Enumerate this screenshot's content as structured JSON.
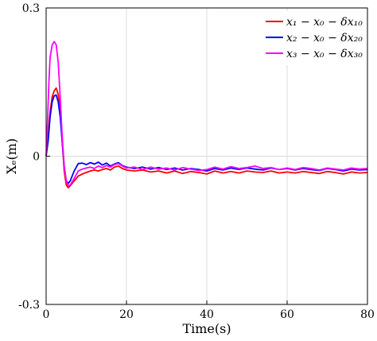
{
  "chart_data": {
    "type": "line",
    "xlabel": "Time(s)",
    "ylabel": "Xₑ(m)",
    "xlim": [
      0,
      80
    ],
    "ylim": [
      -0.3,
      0.3
    ],
    "xticks": [
      "0",
      "20",
      "40",
      "60",
      "80"
    ],
    "yticks": [
      "-0.3",
      "0",
      "0.3"
    ],
    "grid": true,
    "legend_position": "top-right",
    "series": [
      {
        "name": "x₁ − x₀ − δx₁₀",
        "color": "#ff0000",
        "points": [
          [
            0,
            0.0
          ],
          [
            0.5,
            0.04
          ],
          [
            1,
            0.09
          ],
          [
            1.5,
            0.12
          ],
          [
            2,
            0.132
          ],
          [
            2.5,
            0.138
          ],
          [
            3,
            0.125
          ],
          [
            3.5,
            0.09
          ],
          [
            4,
            0.03
          ],
          [
            4.5,
            -0.03
          ],
          [
            5,
            -0.058
          ],
          [
            5.5,
            -0.064
          ],
          [
            6,
            -0.06
          ],
          [
            7,
            -0.05
          ],
          [
            8,
            -0.04
          ],
          [
            9,
            -0.036
          ],
          [
            10,
            -0.033
          ],
          [
            11,
            -0.03
          ],
          [
            12,
            -0.028
          ],
          [
            13,
            -0.03
          ],
          [
            14,
            -0.027
          ],
          [
            15,
            -0.025
          ],
          [
            16,
            -0.028
          ],
          [
            17,
            -0.022
          ],
          [
            18,
            -0.02
          ],
          [
            19,
            -0.025
          ],
          [
            20,
            -0.028
          ],
          [
            22,
            -0.03
          ],
          [
            24,
            -0.028
          ],
          [
            26,
            -0.032
          ],
          [
            28,
            -0.03
          ],
          [
            30,
            -0.034
          ],
          [
            32,
            -0.03
          ],
          [
            34,
            -0.035
          ],
          [
            36,
            -0.031
          ],
          [
            38,
            -0.033
          ],
          [
            40,
            -0.036
          ],
          [
            42,
            -0.03
          ],
          [
            44,
            -0.034
          ],
          [
            46,
            -0.031
          ],
          [
            48,
            -0.034
          ],
          [
            50,
            -0.03
          ],
          [
            52,
            -0.032
          ],
          [
            54,
            -0.033
          ],
          [
            56,
            -0.03
          ],
          [
            58,
            -0.034
          ],
          [
            60,
            -0.032
          ],
          [
            62,
            -0.034
          ],
          [
            64,
            -0.031
          ],
          [
            66,
            -0.033
          ],
          [
            68,
            -0.035
          ],
          [
            70,
            -0.031
          ],
          [
            72,
            -0.033
          ],
          [
            74,
            -0.036
          ],
          [
            76,
            -0.032
          ],
          [
            78,
            -0.034
          ],
          [
            80,
            -0.033
          ]
        ]
      },
      {
        "name": "x₂ − x₀ − δx₂₀",
        "color": "#0000ff",
        "points": [
          [
            0,
            0.0
          ],
          [
            0.5,
            0.03
          ],
          [
            1,
            0.08
          ],
          [
            1.5,
            0.11
          ],
          [
            2,
            0.122
          ],
          [
            2.5,
            0.124
          ],
          [
            3,
            0.11
          ],
          [
            3.5,
            0.08
          ],
          [
            4,
            0.03
          ],
          [
            4.5,
            -0.02
          ],
          [
            5,
            -0.05
          ],
          [
            5.5,
            -0.055
          ],
          [
            6,
            -0.05
          ],
          [
            7,
            -0.03
          ],
          [
            8,
            -0.015
          ],
          [
            9,
            -0.014
          ],
          [
            10,
            -0.017
          ],
          [
            11,
            -0.013
          ],
          [
            12,
            -0.016
          ],
          [
            13,
            -0.012
          ],
          [
            14,
            -0.018
          ],
          [
            15,
            -0.014
          ],
          [
            16,
            -0.02
          ],
          [
            17,
            -0.016
          ],
          [
            18,
            -0.013
          ],
          [
            19,
            -0.019
          ],
          [
            20,
            -0.022
          ],
          [
            22,
            -0.025
          ],
          [
            24,
            -0.022
          ],
          [
            26,
            -0.026
          ],
          [
            28,
            -0.023
          ],
          [
            30,
            -0.027
          ],
          [
            32,
            -0.024
          ],
          [
            34,
            -0.028
          ],
          [
            36,
            -0.025
          ],
          [
            38,
            -0.027
          ],
          [
            40,
            -0.03
          ],
          [
            42,
            -0.025
          ],
          [
            44,
            -0.028
          ],
          [
            46,
            -0.024
          ],
          [
            48,
            -0.027
          ],
          [
            50,
            -0.024
          ],
          [
            52,
            -0.026
          ],
          [
            54,
            -0.028
          ],
          [
            56,
            -0.024
          ],
          [
            58,
            -0.027
          ],
          [
            60,
            -0.025
          ],
          [
            62,
            -0.028
          ],
          [
            64,
            -0.025
          ],
          [
            66,
            -0.027
          ],
          [
            68,
            -0.029
          ],
          [
            70,
            -0.025
          ],
          [
            72,
            -0.027
          ],
          [
            74,
            -0.03
          ],
          [
            76,
            -0.026
          ],
          [
            78,
            -0.028
          ],
          [
            80,
            -0.027
          ]
        ]
      },
      {
        "name": "x₃ − x₀ − δx₃₀",
        "color": "#ff00ff",
        "points": [
          [
            0,
            0.0
          ],
          [
            0.3,
            0.06
          ],
          [
            0.7,
            0.15
          ],
          [
            1,
            0.2
          ],
          [
            1.5,
            0.225
          ],
          [
            2,
            0.232
          ],
          [
            2.5,
            0.226
          ],
          [
            3,
            0.19
          ],
          [
            3.5,
            0.12
          ],
          [
            4,
            0.04
          ],
          [
            4.5,
            -0.02
          ],
          [
            5,
            -0.05
          ],
          [
            5.5,
            -0.06
          ],
          [
            6,
            -0.058
          ],
          [
            7,
            -0.045
          ],
          [
            8,
            -0.03
          ],
          [
            9,
            -0.026
          ],
          [
            10,
            -0.024
          ],
          [
            11,
            -0.022
          ],
          [
            12,
            -0.025
          ],
          [
            13,
            -0.02
          ],
          [
            14,
            -0.023
          ],
          [
            15,
            -0.019
          ],
          [
            16,
            -0.022
          ],
          [
            17,
            -0.017
          ],
          [
            18,
            -0.015
          ],
          [
            19,
            -0.02
          ],
          [
            20,
            -0.024
          ],
          [
            22,
            -0.022
          ],
          [
            24,
            -0.027
          ],
          [
            26,
            -0.022
          ],
          [
            28,
            -0.026
          ],
          [
            30,
            -0.024
          ],
          [
            32,
            -0.028
          ],
          [
            34,
            -0.023
          ],
          [
            36,
            -0.026
          ],
          [
            38,
            -0.029
          ],
          [
            40,
            -0.027
          ],
          [
            42,
            -0.022
          ],
          [
            44,
            -0.026
          ],
          [
            46,
            -0.021
          ],
          [
            48,
            -0.025
          ],
          [
            50,
            -0.023
          ],
          [
            52,
            -0.02
          ],
          [
            54,
            -0.025
          ],
          [
            56,
            -0.023
          ],
          [
            58,
            -0.027
          ],
          [
            60,
            -0.024
          ],
          [
            62,
            -0.027
          ],
          [
            64,
            -0.023
          ],
          [
            66,
            -0.025
          ],
          [
            68,
            -0.028
          ],
          [
            70,
            -0.024
          ],
          [
            72,
            -0.026
          ],
          [
            74,
            -0.028
          ],
          [
            76,
            -0.024
          ],
          [
            78,
            -0.026
          ],
          [
            80,
            -0.025
          ]
        ]
      }
    ]
  }
}
